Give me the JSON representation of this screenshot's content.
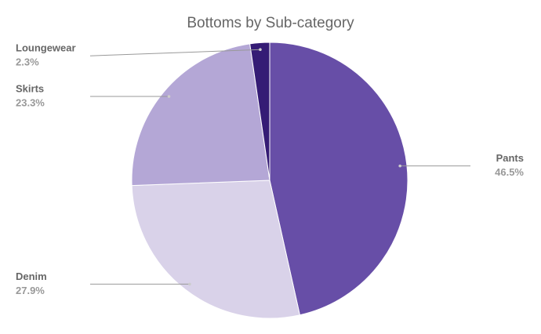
{
  "chart_data": {
    "type": "pie",
    "title": "Bottoms by Sub-category",
    "categories": [
      "Pants",
      "Denim",
      "Skirts",
      "Loungewear"
    ],
    "values": [
      46.5,
      27.9,
      23.3,
      2.3
    ],
    "value_labels": [
      "46.5%",
      "27.9%",
      "23.3%",
      "2.3%"
    ],
    "colors": [
      "#674ea7",
      "#d9d2e9",
      "#b4a7d6",
      "#351c75"
    ]
  }
}
